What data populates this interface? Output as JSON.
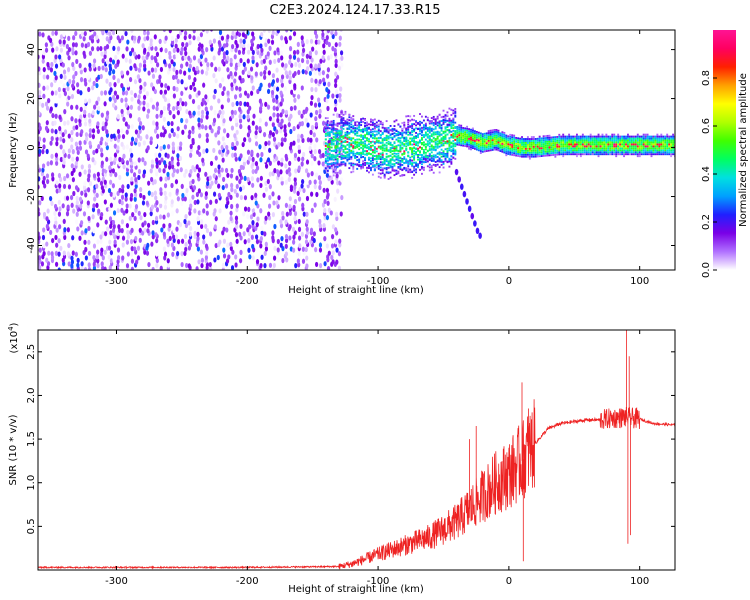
{
  "title": "C2E3.2024.124.17.33.R15",
  "chart_data": [
    {
      "type": "heatmap",
      "xlabel": "Height of straight line (km)",
      "ylabel": "Frequency (Hz)",
      "xlim": [
        -360,
        127
      ],
      "ylim": [
        -50,
        48
      ],
      "xticks": [
        -300,
        -200,
        -100,
        0,
        100
      ],
      "xtick_labels": [
        "-300",
        "-200",
        "-100",
        "0",
        "100"
      ],
      "yticks": [
        -40,
        -20,
        0,
        20,
        40
      ],
      "ytick_labels": [
        "-40",
        "-20",
        "0",
        "20",
        "40"
      ],
      "colorbar": {
        "label": "Normalized spectral amplitude",
        "range": [
          0,
          1
        ],
        "ticks": [
          0.0,
          0.2,
          0.4,
          0.6,
          0.8
        ],
        "tick_labels": [
          "0.0",
          "0.2",
          "0.4",
          "0.6",
          "0.8"
        ],
        "colors": [
          "#ffffff",
          "#b070ff",
          "#7a00e6",
          "#2020ff",
          "#00a0ff",
          "#00e0e0",
          "#00ff60",
          "#40ff00",
          "#b0ff00",
          "#ffff00",
          "#ffa000",
          "#ff2000",
          "#ff0060",
          "#ff1493"
        ]
      },
      "regions": [
        {
          "name": "noise",
          "x_range": [
            -360,
            -127
          ],
          "y_range": [
            -50,
            48
          ],
          "amplitude": 0.1
        },
        {
          "name": "transition",
          "x_range": [
            -140,
            -40
          ],
          "y_range": [
            -15,
            15
          ],
          "amplitude": 0.45
        },
        {
          "name": "tone",
          "x_range": [
            -45,
            127
          ],
          "y_range": [
            -3,
            6
          ],
          "amplitude": 0.55
        },
        {
          "name": "drift",
          "x_range": [
            -40,
            -22
          ],
          "y_range": [
            -36,
            -10
          ],
          "amplitude": 0.15
        }
      ],
      "ridge": {
        "x": [
          -130,
          -120,
          -110,
          -100,
          -90,
          -80,
          -70,
          -60,
          -50,
          -40,
          -30,
          -20,
          -10,
          0,
          10,
          20,
          40,
          60,
          80,
          100,
          120,
          127
        ],
        "y": [
          3,
          2,
          1,
          0,
          -1,
          0,
          1,
          2,
          3,
          5,
          4,
          2,
          3,
          1,
          0,
          0,
          1,
          1,
          1,
          1,
          1,
          1
        ]
      },
      "drift_points": {
        "x": [
          -40,
          -38,
          -36,
          -34,
          -32,
          -30,
          -28,
          -26,
          -24,
          -22
        ],
        "y": [
          -10,
          -13,
          -16,
          -19,
          -22,
          -25,
          -28,
          -31,
          -34,
          -36
        ]
      }
    },
    {
      "type": "line",
      "xlabel": "Height of straight line (km)",
      "ylabel": "SNR (10 * v/v)",
      "y_multiplier": "(x10^4)",
      "xlim": [
        -360,
        127
      ],
      "ylim": [
        0,
        2.75
      ],
      "xticks": [
        -300,
        -200,
        -100,
        0,
        100
      ],
      "xtick_labels": [
        "-300",
        "-200",
        "-100",
        "0",
        "100"
      ],
      "yticks": [
        0.5,
        1.0,
        1.5,
        2.0,
        2.5
      ],
      "ytick_labels": [
        "0.5",
        "1.0",
        "1.5",
        "2.0",
        "2.5"
      ],
      "color": "#ee2222",
      "envelope": {
        "x": [
          -360,
          -200,
          -130,
          -120,
          -100,
          -80,
          -60,
          -40,
          -30,
          -20,
          -10,
          0,
          10,
          20,
          30,
          40,
          50,
          60,
          70,
          80,
          90,
          100,
          110,
          127
        ],
        "y": [
          0.03,
          0.03,
          0.04,
          0.07,
          0.18,
          0.28,
          0.38,
          0.55,
          0.7,
          0.85,
          1.0,
          1.1,
          1.25,
          1.45,
          1.62,
          1.68,
          1.7,
          1.72,
          1.72,
          1.74,
          1.75,
          1.73,
          1.68,
          1.66
        ]
      },
      "spikes": {
        "x": [
          -30,
          -25,
          10,
          11,
          12,
          15,
          90,
          91,
          92,
          93
        ],
        "y": [
          1.5,
          1.65,
          2.15,
          0.1,
          1.0,
          1.85,
          2.75,
          0.3,
          2.45,
          0.4
        ]
      }
    }
  ]
}
